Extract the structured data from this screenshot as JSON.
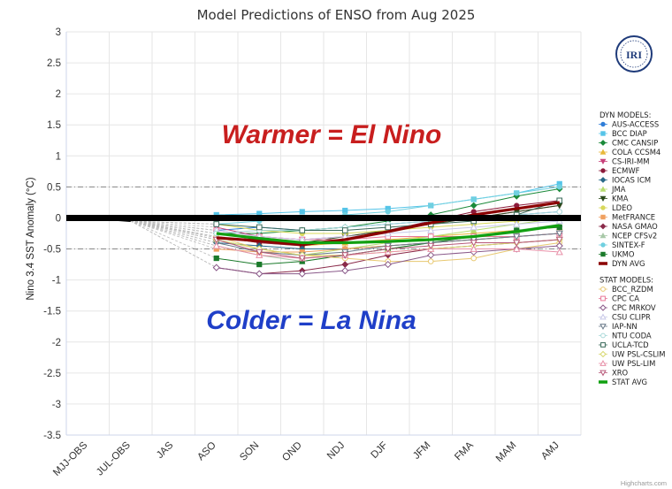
{
  "colors": {
    "warm": "#c81e1e",
    "cold": "#1f3fc8",
    "dyn_avg": "#8b0000",
    "stat_avg": "#11a011",
    "logo": "#1f3b7a"
  },
  "logo": {
    "text": "IRI",
    "icon": "iri-logo-icon"
  },
  "credit": "Highcharts.com",
  "annotations": {
    "warm": "Warmer = El Nino",
    "cold": "Colder = La Nina"
  },
  "chart_data": {
    "type": "line",
    "title": "Model Predictions of ENSO from Aug 2025",
    "xlabel": "",
    "ylabel": "Nino 3.4 SST Anomaly (°C)",
    "ylim": [
      -3.5,
      3
    ],
    "yticks": [
      3,
      2.5,
      2,
      1.5,
      1,
      0.5,
      0,
      -0.5,
      -1,
      -1.5,
      -2,
      -2.5,
      -3,
      -3.5
    ],
    "categories": [
      "MJJ-OBS",
      "JUL-OBS",
      "JAS",
      "ASO",
      "SON",
      "OND",
      "NDJ",
      "DJF",
      "JFM",
      "FMA",
      "MAM",
      "AMJ"
    ],
    "observed": [
      0.0,
      -0.05
    ],
    "reference_lines": [
      0.5,
      -0.5
    ],
    "legend_headers": {
      "dyn": "DYN MODELS:",
      "stat": "STAT MODELS:"
    },
    "series": [
      {
        "name": "AUS-ACCESS",
        "group": "dyn",
        "color": "#2f7ed8",
        "marker": "circle",
        "values": [
          null,
          null,
          null,
          -0.2,
          -0.15,
          -0.2,
          -0.15,
          -0.1,
          -0.05,
          0.0,
          0.05,
          0.1
        ]
      },
      {
        "name": "BCC DIAP",
        "group": "dyn",
        "color": "#55c4e8",
        "marker": "square",
        "values": [
          null,
          null,
          null,
          0.05,
          0.07,
          0.1,
          0.12,
          0.15,
          0.2,
          0.3,
          0.4,
          0.55
        ]
      },
      {
        "name": "CMC CANSIP",
        "group": "dyn",
        "color": "#1b8a3a",
        "marker": "diamond",
        "values": [
          null,
          null,
          null,
          -0.25,
          -0.25,
          -0.2,
          -0.15,
          -0.05,
          0.05,
          0.2,
          0.35,
          0.47
        ]
      },
      {
        "name": "COLA CCSM4",
        "group": "dyn",
        "color": "#e8b83a",
        "marker": "triangle",
        "values": [
          null,
          null,
          null,
          -0.3,
          -0.4,
          -0.45,
          -0.4,
          -0.35,
          -0.3,
          -0.25,
          -0.2,
          -0.15
        ]
      },
      {
        "name": "CS-IRI-MM",
        "group": "dyn",
        "color": "#c8407a",
        "marker": "triangle-down",
        "values": [
          null,
          null,
          null,
          -0.15,
          -0.3,
          -0.35,
          -0.3,
          -0.2,
          -0.1,
          0.0,
          0.1,
          0.2
        ]
      },
      {
        "name": "ECMWF",
        "group": "dyn",
        "color": "#8c1a3a",
        "marker": "circle",
        "values": [
          null,
          null,
          null,
          -0.3,
          -0.4,
          -0.45,
          -0.35,
          -0.2,
          -0.05,
          0.1,
          0.2,
          0.28
        ]
      },
      {
        "name": "IOCAS ICM",
        "group": "dyn",
        "color": "#2a6a8a",
        "marker": "diamond",
        "values": [
          null,
          null,
          null,
          -0.4,
          -0.45,
          -0.5,
          -0.5,
          -0.45,
          -0.4,
          -0.35,
          -0.3,
          -0.25
        ]
      },
      {
        "name": "JMA",
        "group": "dyn",
        "color": "#b8dc70",
        "marker": "triangle",
        "values": [
          null,
          null,
          null,
          -0.35,
          -0.5,
          -0.6,
          -0.5,
          -0.4,
          -0.3,
          -0.2,
          -0.1,
          0.0
        ]
      },
      {
        "name": "KMA",
        "group": "dyn",
        "color": "#2a4a1a",
        "marker": "triangle-down",
        "values": [
          null,
          null,
          null,
          -0.25,
          -0.35,
          -0.4,
          -0.3,
          -0.2,
          -0.1,
          0.0,
          0.1,
          0.2
        ]
      },
      {
        "name": "LDEO",
        "group": "dyn",
        "color": "#d8d85a",
        "marker": "circle",
        "values": [
          null,
          null,
          null,
          -0.1,
          -0.2,
          -0.25,
          -0.25,
          -0.2,
          -0.15,
          -0.1,
          -0.05,
          0.0
        ]
      },
      {
        "name": "MetFRANCE",
        "group": "dyn",
        "color": "#f0a060",
        "marker": "square",
        "values": [
          null,
          null,
          null,
          -0.5,
          -0.55,
          -0.55,
          -0.5,
          -0.45,
          -0.4,
          -0.35,
          -0.3,
          -0.25
        ]
      },
      {
        "name": "NASA GMAO",
        "group": "dyn",
        "color": "#8a2a4a",
        "marker": "diamond",
        "values": [
          null,
          null,
          null,
          -0.8,
          -0.9,
          -0.85,
          -0.75,
          -0.6,
          -0.5,
          -0.45,
          -0.4,
          -0.35
        ]
      },
      {
        "name": "NCEP CFSv2",
        "group": "dyn",
        "color": "#a8c8a8",
        "marker": "triangle",
        "values": [
          null,
          null,
          null,
          -0.45,
          -0.6,
          -0.7,
          -0.6,
          -0.5,
          -0.4,
          -0.3,
          -0.2,
          -0.1
        ]
      },
      {
        "name": "SINTEX-F",
        "group": "dyn",
        "color": "#70d0e0",
        "marker": "circle",
        "values": [
          null,
          null,
          null,
          -0.1,
          -0.05,
          0.0,
          0.05,
          0.1,
          0.2,
          0.3,
          0.4,
          0.5
        ]
      },
      {
        "name": "UKMO",
        "group": "dyn",
        "color": "#1a7a2a",
        "marker": "square",
        "values": [
          null,
          null,
          null,
          -0.65,
          -0.75,
          -0.7,
          -0.6,
          -0.5,
          -0.4,
          -0.3,
          -0.2,
          -0.15
        ]
      },
      {
        "name": "DYN AVG",
        "group": "dyn",
        "color": "#8b0000",
        "marker": "bar",
        "avg": true,
        "values": [
          null,
          null,
          null,
          -0.32,
          -0.37,
          -0.43,
          -0.35,
          -0.22,
          -0.08,
          0.05,
          0.15,
          0.25
        ]
      },
      {
        "name": "BCC_RZDM",
        "group": "stat",
        "color": "#e8c870",
        "marker": "circle-open",
        "values": [
          null,
          null,
          null,
          -0.3,
          -0.5,
          -0.6,
          -0.65,
          -0.7,
          -0.7,
          -0.65,
          -0.5,
          -0.4
        ]
      },
      {
        "name": "CPC CA",
        "group": "stat",
        "color": "#e87898",
        "marker": "square-open",
        "values": [
          null,
          null,
          null,
          -0.2,
          -0.3,
          -0.35,
          -0.35,
          -0.3,
          -0.3,
          -0.3,
          -0.3,
          -0.25
        ]
      },
      {
        "name": "CPC MRKOV",
        "group": "stat",
        "color": "#8a5a8a",
        "marker": "diamond-open",
        "values": [
          null,
          null,
          null,
          -0.8,
          -0.9,
          -0.9,
          -0.85,
          -0.75,
          -0.6,
          -0.55,
          -0.5,
          -0.45
        ]
      },
      {
        "name": "CSU CLIPR",
        "group": "stat",
        "color": "#c8c8e8",
        "marker": "triangle-open",
        "values": [
          null,
          null,
          null,
          -0.2,
          -0.3,
          -0.35,
          -0.3,
          -0.25,
          -0.2,
          -0.15,
          -0.1,
          -0.05
        ]
      },
      {
        "name": "IAP-NN",
        "group": "stat",
        "color": "#6a7a8a",
        "marker": "triangle-down-open",
        "values": [
          null,
          null,
          null,
          -0.4,
          -0.55,
          -0.6,
          -0.55,
          -0.45,
          -0.4,
          -0.35,
          -0.3,
          -0.25
        ]
      },
      {
        "name": "NTU CODA",
        "group": "stat",
        "color": "#a8d8d8",
        "marker": "circle-open",
        "values": [
          null,
          null,
          null,
          -0.25,
          -0.2,
          -0.2,
          -0.15,
          -0.1,
          -0.05,
          0.0,
          0.05,
          0.1
        ]
      },
      {
        "name": "UCLA-TCD",
        "group": "stat",
        "color": "#3a6a5a",
        "marker": "square-open",
        "values": [
          null,
          null,
          null,
          -0.1,
          -0.15,
          -0.2,
          -0.2,
          -0.15,
          -0.1,
          -0.05,
          0.05,
          0.28
        ]
      },
      {
        "name": "UW PSL-CSLIM",
        "group": "stat",
        "color": "#d8d870",
        "marker": "diamond-open",
        "values": [
          null,
          null,
          null,
          -0.35,
          -0.5,
          -0.6,
          -0.6,
          -0.55,
          -0.5,
          -0.45,
          -0.4,
          -0.35
        ]
      },
      {
        "name": "UW PSL-LIM",
        "group": "stat",
        "color": "#e890a8",
        "marker": "triangle-open",
        "values": [
          null,
          null,
          null,
          -0.45,
          -0.6,
          -0.65,
          -0.6,
          -0.55,
          -0.5,
          -0.5,
          -0.5,
          -0.55
        ]
      },
      {
        "name": "XRO",
        "group": "stat",
        "color": "#b85a7a",
        "marker": "triangle-down-open",
        "values": [
          null,
          null,
          null,
          -0.35,
          -0.55,
          -0.65,
          -0.6,
          -0.5,
          -0.45,
          -0.4,
          -0.4,
          -0.35
        ]
      },
      {
        "name": "STAT AVG",
        "group": "stat",
        "color": "#11a011",
        "marker": "bar",
        "avg": true,
        "values": [
          null,
          null,
          null,
          -0.25,
          -0.33,
          -0.4,
          -0.4,
          -0.38,
          -0.35,
          -0.3,
          -0.22,
          -0.12
        ]
      }
    ]
  }
}
